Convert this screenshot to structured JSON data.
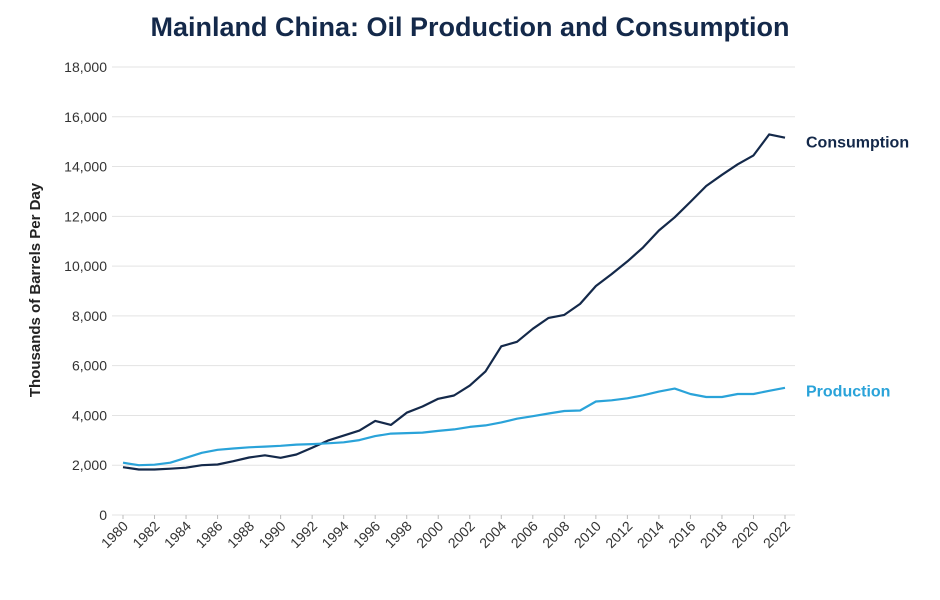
{
  "chart_data": {
    "type": "line",
    "title": "Mainland China: Oil Production and Consumption",
    "ylabel": "Thousands of Barrels Per Day",
    "xlabel": "",
    "ylim": [
      0,
      18000
    ],
    "xlim": [
      1980,
      2022
    ],
    "yticks": [
      0,
      2000,
      4000,
      6000,
      8000,
      10000,
      12000,
      14000,
      16000,
      18000
    ],
    "ytick_labels": [
      "0",
      "2,000",
      "4,000",
      "6,000",
      "8,000",
      "10,000",
      "12,000",
      "14,000",
      "16,000",
      "18,000"
    ],
    "xticks": [
      1980,
      1982,
      1984,
      1986,
      1988,
      1990,
      1992,
      1994,
      1996,
      1998,
      2000,
      2002,
      2004,
      2006,
      2008,
      2010,
      2012,
      2014,
      2016,
      2018,
      2020,
      2022
    ],
    "xtick_labels": [
      "1980",
      "1982",
      "1984",
      "1986",
      "1988",
      "1990",
      "1992",
      "1994",
      "1996",
      "1998",
      "2000",
      "2002",
      "2004",
      "2006",
      "2008",
      "2010",
      "2012",
      "2014",
      "2016",
      "2018",
      "2020",
      "2022"
    ],
    "grid": "horizontal",
    "legend": "inline labels at right end of lines",
    "x": [
      1980,
      1981,
      1982,
      1983,
      1984,
      1985,
      1986,
      1987,
      1988,
      1989,
      1990,
      1991,
      1992,
      1993,
      1994,
      1995,
      1996,
      1997,
      1998,
      1999,
      2000,
      2001,
      2002,
      2003,
      2004,
      2005,
      2006,
      2007,
      2008,
      2009,
      2010,
      2011,
      2012,
      2013,
      2014,
      2015,
      2016,
      2017,
      2018,
      2019,
      2020,
      2021,
      2022
    ],
    "series": [
      {
        "name": "Consumption",
        "color": "#14294a",
        "values": [
          1920,
          1830,
          1830,
          1860,
          1900,
          2000,
          2030,
          2160,
          2310,
          2400,
          2300,
          2430,
          2700,
          2990,
          3190,
          3390,
          3780,
          3620,
          4110,
          4360,
          4670,
          4800,
          5200,
          5770,
          6780,
          6960,
          7480,
          7920,
          8040,
          8480,
          9200,
          9680,
          10190,
          10750,
          11430,
          11960,
          12580,
          13220,
          13670,
          14090,
          14450,
          15290,
          15160
        ]
      },
      {
        "name": "Production",
        "color": "#2aa3d9",
        "values": [
          2100,
          2000,
          2020,
          2100,
          2300,
          2500,
          2620,
          2670,
          2720,
          2750,
          2780,
          2830,
          2850,
          2880,
          2920,
          3010,
          3170,
          3270,
          3290,
          3310,
          3380,
          3440,
          3540,
          3600,
          3720,
          3870,
          3970,
          4080,
          4180,
          4200,
          4560,
          4610,
          4690,
          4810,
          4960,
          5080,
          4860,
          4740,
          4740,
          4860,
          4860,
          4990,
          5110
        ]
      }
    ]
  }
}
